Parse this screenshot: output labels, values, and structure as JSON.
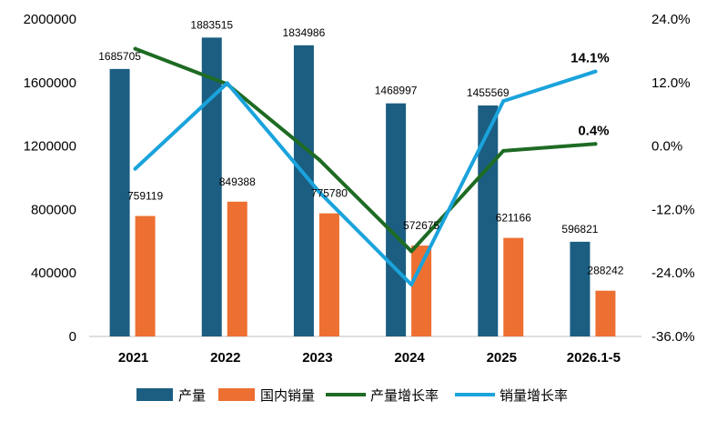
{
  "chart_data": {
    "type": "bar",
    "categories": [
      "2021",
      "2022",
      "2023",
      "2024",
      "2025",
      "2026.1-5"
    ],
    "series": [
      {
        "name": "产量",
        "kind": "bar",
        "axis": "left",
        "color": "#1B5E82",
        "values": [
          1685705,
          1883515,
          1834986,
          1468997,
          1455569,
          596821
        ]
      },
      {
        "name": "国内销量",
        "kind": "bar",
        "axis": "left",
        "color": "#ED7032",
        "values": [
          759119,
          849388,
          775780,
          572675,
          621166,
          288242
        ]
      },
      {
        "name": "产量增长率",
        "kind": "line",
        "axis": "right",
        "color": "#1E6B24",
        "values": [
          18.4,
          11.7,
          -2.6,
          -19.9,
          -0.9,
          0.4
        ]
      },
      {
        "name": "销量增长率",
        "kind": "line",
        "axis": "right",
        "color": "#1AA3DC",
        "values": [
          -4.3,
          11.9,
          -8.7,
          -26.2,
          8.5,
          14.1
        ]
      }
    ],
    "left_axis": {
      "ylim": [
        0,
        2000000
      ],
      "ticks": [
        "0",
        "400000",
        "800000",
        "1200000",
        "1600000",
        "2000000"
      ]
    },
    "right_axis": {
      "ylim": [
        -36,
        24
      ],
      "ticks": [
        "-36.0%",
        "-24.0%",
        "-12.0%",
        "0.0%",
        "12.0%",
        "24.0%"
      ]
    },
    "bar_labels": [
      [
        "1685705",
        "1883515",
        "1834986",
        "1468997",
        "1455569",
        "596821"
      ],
      [
        "759119",
        "849388",
        "775780",
        "572675",
        "621166",
        "288242"
      ]
    ],
    "line_end_labels": {
      "sales_growth": "14.1%",
      "production_growth": "0.4%"
    },
    "grid": false,
    "legend_position": "bottom"
  }
}
